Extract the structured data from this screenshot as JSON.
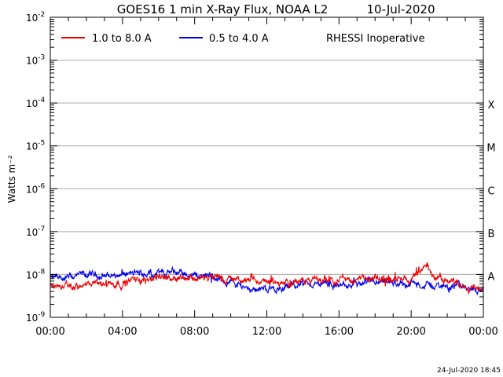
{
  "chart_data": {
    "type": "line",
    "title": "GOES16 1 min X-Ray Flux, NOAA L2",
    "date": "10-Jul-2020",
    "ylabel": "Watts m⁻²",
    "xlabel": "",
    "y_scale": "log",
    "ylim": [
      1e-09,
      0.01
    ],
    "y_ticks": [
      {
        "value": 0.01,
        "exp": "-2"
      },
      {
        "value": 0.001,
        "exp": "-3"
      },
      {
        "value": 0.0001,
        "exp": "-4"
      },
      {
        "value": 1e-05,
        "exp": "-5"
      },
      {
        "value": 1e-06,
        "exp": "-6"
      },
      {
        "value": 1e-07,
        "exp": "-7"
      },
      {
        "value": 1e-08,
        "exp": "-8"
      },
      {
        "value": 1e-09,
        "exp": "-9"
      }
    ],
    "x_ticks": [
      "00:00",
      "04:00",
      "08:00",
      "12:00",
      "16:00",
      "20:00",
      "00:00"
    ],
    "flare_classes": [
      {
        "label": "X",
        "value": 0.0001
      },
      {
        "label": "M",
        "value": 1e-05
      },
      {
        "label": "C",
        "value": 1e-06
      },
      {
        "label": "B",
        "value": 1e-07
      },
      {
        "label": "A",
        "value": 1e-08
      }
    ],
    "grid": "horizontal at decades 1e-8 to 1e-3",
    "legend_position": "top-left",
    "note": "RHESSI Inoperative",
    "timestamp": "24-Jul-2020 18:45",
    "series": [
      {
        "name": "1.0 to 8.0 A",
        "color": "#ee0000",
        "x_hours": [
          0,
          1,
          2,
          3,
          4,
          5,
          6,
          7,
          8,
          9,
          10,
          11,
          12,
          13,
          14,
          15,
          16,
          17,
          18,
          19,
          20,
          20.5,
          20.8,
          21,
          21.5,
          22,
          23,
          24
        ],
        "y": [
          5.5e-09,
          5e-09,
          5.5e-09,
          6e-09,
          6.5e-09,
          8e-09,
          9e-09,
          9e-09,
          8.5e-09,
          8e-09,
          7.5e-09,
          7e-09,
          6.5e-09,
          6.5e-09,
          7e-09,
          7.5e-09,
          8e-09,
          7.5e-09,
          7.5e-09,
          7.5e-09,
          8e-09,
          1.05e-08,
          1.5e-08,
          1.2e-08,
          9e-09,
          7e-09,
          6e-09,
          5e-09
        ]
      },
      {
        "name": "0.5 to 4.0 A",
        "color": "#0000ee",
        "x_hours": [
          0,
          1,
          2,
          3,
          4,
          5,
          6,
          7,
          8,
          9,
          10,
          11,
          12,
          13,
          14,
          15,
          16,
          17,
          18,
          19,
          20,
          21,
          22,
          23,
          24
        ],
        "y": [
          8e-09,
          8.5e-09,
          9.5e-09,
          9.5e-09,
          1e-08,
          1.05e-08,
          1.1e-08,
          1.1e-08,
          1e-08,
          8.5e-09,
          6.5e-09,
          5e-09,
          4.5e-09,
          5e-09,
          6e-09,
          6e-09,
          5.5e-09,
          5.5e-09,
          6e-09,
          6e-09,
          6e-09,
          5.5e-09,
          5.5e-09,
          5e-09,
          4.5e-09
        ]
      }
    ]
  }
}
